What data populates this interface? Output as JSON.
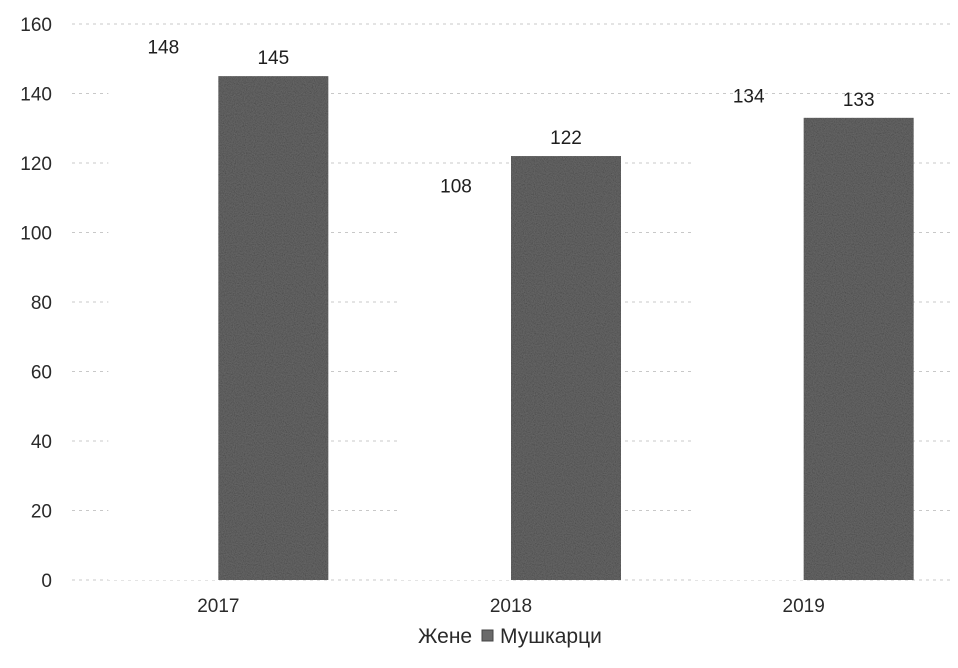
{
  "chart_data": {
    "type": "bar",
    "categories": [
      "2017",
      "2018",
      "2019"
    ],
    "series": [
      {
        "name": "Жене",
        "values": [
          148,
          108,
          134
        ],
        "color": "#ffffff"
      },
      {
        "name": "Мушкарци",
        "values": [
          145,
          122,
          133
        ],
        "color": "#6a6a6a"
      }
    ],
    "ylim": [
      0,
      160
    ],
    "yticks": [
      0,
      20,
      40,
      60,
      80,
      100,
      120,
      140,
      160
    ],
    "grid": true,
    "legend": "bottom"
  }
}
